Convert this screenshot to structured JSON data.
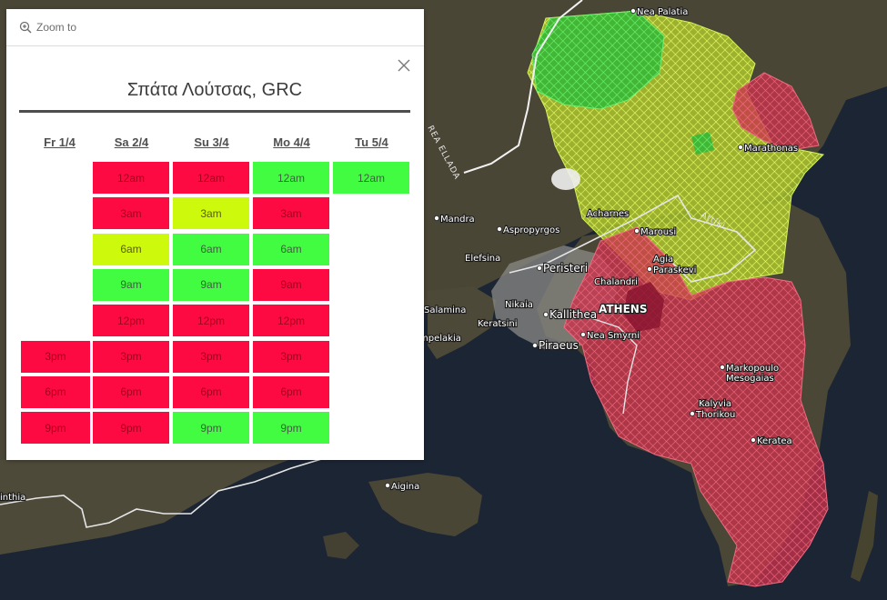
{
  "map": {
    "labels": [
      {
        "id": "nea-palatia",
        "text": "Nea Palatia"
      },
      {
        "id": "marathonas",
        "text": "Marathonas"
      },
      {
        "id": "acharnes",
        "text": "Acharnes"
      },
      {
        "id": "marousi",
        "text": "Marousi"
      },
      {
        "id": "agia-paraskevi-1",
        "text": "Agia"
      },
      {
        "id": "agia-paraskevi-2",
        "text": "Paraskevi"
      },
      {
        "id": "chalandri",
        "text": "Chalandri"
      },
      {
        "id": "mandra",
        "text": "Mandra"
      },
      {
        "id": "aspropyrgos",
        "text": "Aspropyrgos"
      },
      {
        "id": "elefsina",
        "text": "Elefsina"
      },
      {
        "id": "peristeri",
        "text": "Peristeri"
      },
      {
        "id": "athens",
        "text": "ATHENS"
      },
      {
        "id": "nikaia",
        "text": "Nikaia"
      },
      {
        "id": "kallithea",
        "text": "Kallithea"
      },
      {
        "id": "keratsini",
        "text": "Keratsini"
      },
      {
        "id": "nea-smyrni",
        "text": "Nea Smyrni"
      },
      {
        "id": "piraeus",
        "text": "Piraeus"
      },
      {
        "id": "salamina",
        "text": "Salamina"
      },
      {
        "id": "ampelakia",
        "text": "mpelakia"
      },
      {
        "id": "markopoulo-1",
        "text": "Markopoulo"
      },
      {
        "id": "markopoulo-2",
        "text": "Mesogaias"
      },
      {
        "id": "kalyvia-1",
        "text": "Kalyvia"
      },
      {
        "id": "kalyvia-2",
        "text": "Thorikou"
      },
      {
        "id": "keratea",
        "text": "Keratea"
      },
      {
        "id": "aigina",
        "text": "Aigina"
      },
      {
        "id": "inthia",
        "text": "inthia"
      },
      {
        "id": "attiki-road",
        "text": "Attiki"
      },
      {
        "id": "olympia-road",
        "text": "REA ELLADA"
      }
    ],
    "colors": {
      "red": "#d8334e",
      "green": "#2fcf3a",
      "yellow": "#c9e83a"
    }
  },
  "popup": {
    "zoom_label": "Zoom to",
    "title": "Σπάτα Λούτσας, GRC",
    "days": [
      "Fr 1/4",
      "Sa 2/4",
      "Su 3/4",
      "Mo 4/4",
      "Tu 5/4"
    ],
    "grid": [
      [
        null,
        {
          "t": "12am",
          "c": "red"
        },
        {
          "t": "12am",
          "c": "red"
        },
        {
          "t": "12am",
          "c": "green"
        },
        {
          "t": "12am",
          "c": "green"
        }
      ],
      [
        null,
        {
          "t": "3am",
          "c": "red"
        },
        {
          "t": "3am",
          "c": "yellow"
        },
        {
          "t": "3am",
          "c": "red"
        },
        null
      ],
      [
        null,
        {
          "t": "6am",
          "c": "yellow"
        },
        {
          "t": "6am",
          "c": "green"
        },
        {
          "t": "6am",
          "c": "green"
        },
        null
      ],
      [
        null,
        {
          "t": "9am",
          "c": "green"
        },
        {
          "t": "9am",
          "c": "green"
        },
        {
          "t": "9am",
          "c": "red"
        },
        null
      ],
      [
        null,
        {
          "t": "12pm",
          "c": "red"
        },
        {
          "t": "12pm",
          "c": "red"
        },
        {
          "t": "12pm",
          "c": "red"
        },
        null
      ],
      [
        {
          "t": "3pm",
          "c": "red"
        },
        {
          "t": "3pm",
          "c": "red"
        },
        {
          "t": "3pm",
          "c": "red"
        },
        {
          "t": "3pm",
          "c": "red"
        },
        null
      ],
      [
        {
          "t": "6pm",
          "c": "red"
        },
        {
          "t": "6pm",
          "c": "red"
        },
        {
          "t": "6pm",
          "c": "red"
        },
        {
          "t": "6pm",
          "c": "red"
        },
        null
      ],
      [
        {
          "t": "9pm",
          "c": "red"
        },
        {
          "t": "9pm",
          "c": "red"
        },
        {
          "t": "9pm",
          "c": "green"
        },
        {
          "t": "9pm",
          "c": "green"
        },
        null
      ]
    ]
  }
}
